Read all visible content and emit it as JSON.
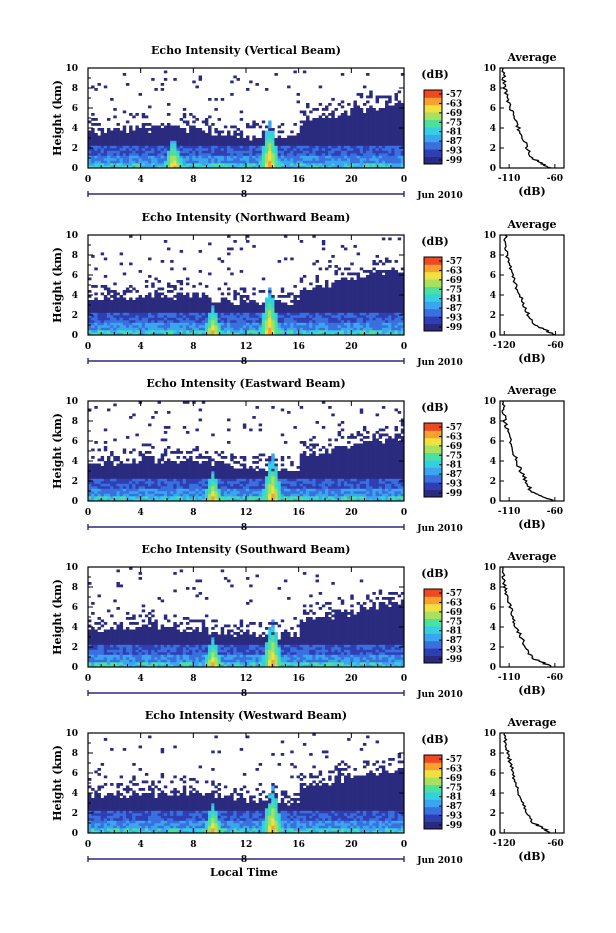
{
  "figure": {
    "xlabel_bottom": "Local Time",
    "date_label": "Jun 2010",
    "day_label": "8"
  },
  "colorbar": {
    "unit": "(dB)",
    "ticks": [
      "-57",
      "-63",
      "-69",
      "-75",
      "-81",
      "-87",
      "-93",
      "-99"
    ]
  },
  "colors": {
    "scale": [
      "#2a2a7e",
      "#2e3fb4",
      "#3a6fe0",
      "#3aa6f0",
      "#35d0e0",
      "#4de0a0",
      "#a8e060",
      "#f0e040",
      "#f8a030",
      "#f04820"
    ]
  },
  "chart_data": [
    {
      "type": "heatmap",
      "title": "Echo Intensity (Vertical Beam)",
      "ylabel": "Height (km)",
      "ylim": [
        0,
        10
      ],
      "xlim": [
        0,
        24
      ],
      "xticks": [
        "0",
        "4",
        "8",
        "12",
        "16",
        "20",
        "0"
      ],
      "yticks": [
        "0",
        "2",
        "4",
        "6",
        "8",
        "10"
      ],
      "convective_peaks_hr": [
        6.5,
        13.8
      ],
      "profile": {
        "title": "Average",
        "xlabel": "(dB)",
        "xticks": [
          "-110",
          "-60"
        ],
        "xlim": [
          -120,
          -50
        ],
        "points": [
          [
            -65,
            0
          ],
          [
            -75,
            0.5
          ],
          [
            -85,
            1
          ],
          [
            -90,
            2
          ],
          [
            -95,
            3
          ],
          [
            -100,
            4
          ],
          [
            -105,
            5
          ],
          [
            -108,
            6
          ],
          [
            -112,
            7
          ],
          [
            -115,
            8
          ],
          [
            -116,
            9
          ],
          [
            -117,
            10
          ]
        ]
      }
    },
    {
      "type": "heatmap",
      "title": "Echo Intensity (Northward Beam)",
      "ylabel": "Height (km)",
      "ylim": [
        0,
        10
      ],
      "xlim": [
        0,
        24
      ],
      "xticks": [
        "0",
        "4",
        "8",
        "12",
        "16",
        "20",
        "0"
      ],
      "yticks": [
        "0",
        "2",
        "4",
        "6",
        "8",
        "10"
      ],
      "convective_peaks_hr": [
        9.5,
        13.8
      ],
      "profile": {
        "title": "Average",
        "xlabel": "(dB)",
        "xticks": [
          "-120",
          "-60"
        ],
        "xlim": [
          -125,
          -50
        ],
        "points": [
          [
            -60,
            0
          ],
          [
            -72,
            0.5
          ],
          [
            -85,
            1
          ],
          [
            -92,
            2
          ],
          [
            -97,
            3
          ],
          [
            -102,
            4
          ],
          [
            -107,
            5
          ],
          [
            -110,
            6
          ],
          [
            -114,
            7
          ],
          [
            -117,
            8
          ],
          [
            -118,
            9
          ],
          [
            -119,
            10
          ]
        ]
      }
    },
    {
      "type": "heatmap",
      "title": "Echo Intensity (Eastward Beam)",
      "ylabel": "Height (km)",
      "ylim": [
        0,
        10
      ],
      "xlim": [
        0,
        24
      ],
      "xticks": [
        "0",
        "4",
        "8",
        "12",
        "16",
        "20",
        "0"
      ],
      "yticks": [
        "0",
        "2",
        "4",
        "6",
        "8",
        "10"
      ],
      "convective_peaks_hr": [
        9.5,
        14.0
      ],
      "profile": {
        "title": "Average",
        "xlabel": "(dB)",
        "xticks": [
          "-110",
          "-60"
        ],
        "xlim": [
          -120,
          -50
        ],
        "points": [
          [
            -62,
            0
          ],
          [
            -75,
            0.5
          ],
          [
            -86,
            1
          ],
          [
            -92,
            2
          ],
          [
            -97,
            3
          ],
          [
            -102,
            4
          ],
          [
            -106,
            5
          ],
          [
            -109,
            6
          ],
          [
            -112,
            7
          ],
          [
            -115,
            8
          ],
          [
            -116,
            9
          ],
          [
            -117,
            10
          ]
        ]
      }
    },
    {
      "type": "heatmap",
      "title": "Echo Intensity (Southward Beam)",
      "ylabel": "Height (km)",
      "ylim": [
        0,
        10
      ],
      "xlim": [
        0,
        24
      ],
      "xticks": [
        "0",
        "4",
        "8",
        "12",
        "16",
        "20",
        "0"
      ],
      "yticks": [
        "0",
        "2",
        "4",
        "6",
        "8",
        "10"
      ],
      "convective_peaks_hr": [
        9.5,
        14.0
      ],
      "profile": {
        "title": "Average",
        "xlabel": "(dB)",
        "xticks": [
          "-110",
          "-60"
        ],
        "xlim": [
          -120,
          -50
        ],
        "points": [
          [
            -63,
            0
          ],
          [
            -75,
            0.5
          ],
          [
            -86,
            1
          ],
          [
            -92,
            2
          ],
          [
            -97,
            3
          ],
          [
            -102,
            4
          ],
          [
            -106,
            5
          ],
          [
            -109,
            6
          ],
          [
            -112,
            7
          ],
          [
            -115,
            8
          ],
          [
            -116,
            9
          ],
          [
            -117,
            10
          ]
        ]
      }
    },
    {
      "type": "heatmap",
      "title": "Echo Intensity (Westward Beam)",
      "ylabel": "Height (km)",
      "ylim": [
        0,
        10
      ],
      "xlim": [
        0,
        24
      ],
      "xticks": [
        "0",
        "4",
        "8",
        "12",
        "16",
        "20",
        "0"
      ],
      "yticks": [
        "0",
        "2",
        "4",
        "6",
        "8",
        "10"
      ],
      "convective_peaks_hr": [
        9.5,
        14.0
      ],
      "profile": {
        "title": "Average",
        "xlabel": "(dB)",
        "xticks": [
          "-120",
          "-60"
        ],
        "xlim": [
          -125,
          -50
        ],
        "points": [
          [
            -65,
            0
          ],
          [
            -75,
            0.5
          ],
          [
            -86,
            1
          ],
          [
            -93,
            2
          ],
          [
            -98,
            3
          ],
          [
            -103,
            4
          ],
          [
            -107,
            5
          ],
          [
            -110,
            6
          ],
          [
            -113,
            7
          ],
          [
            -116,
            8
          ],
          [
            -118,
            9
          ],
          [
            -120,
            10
          ]
        ]
      }
    }
  ]
}
